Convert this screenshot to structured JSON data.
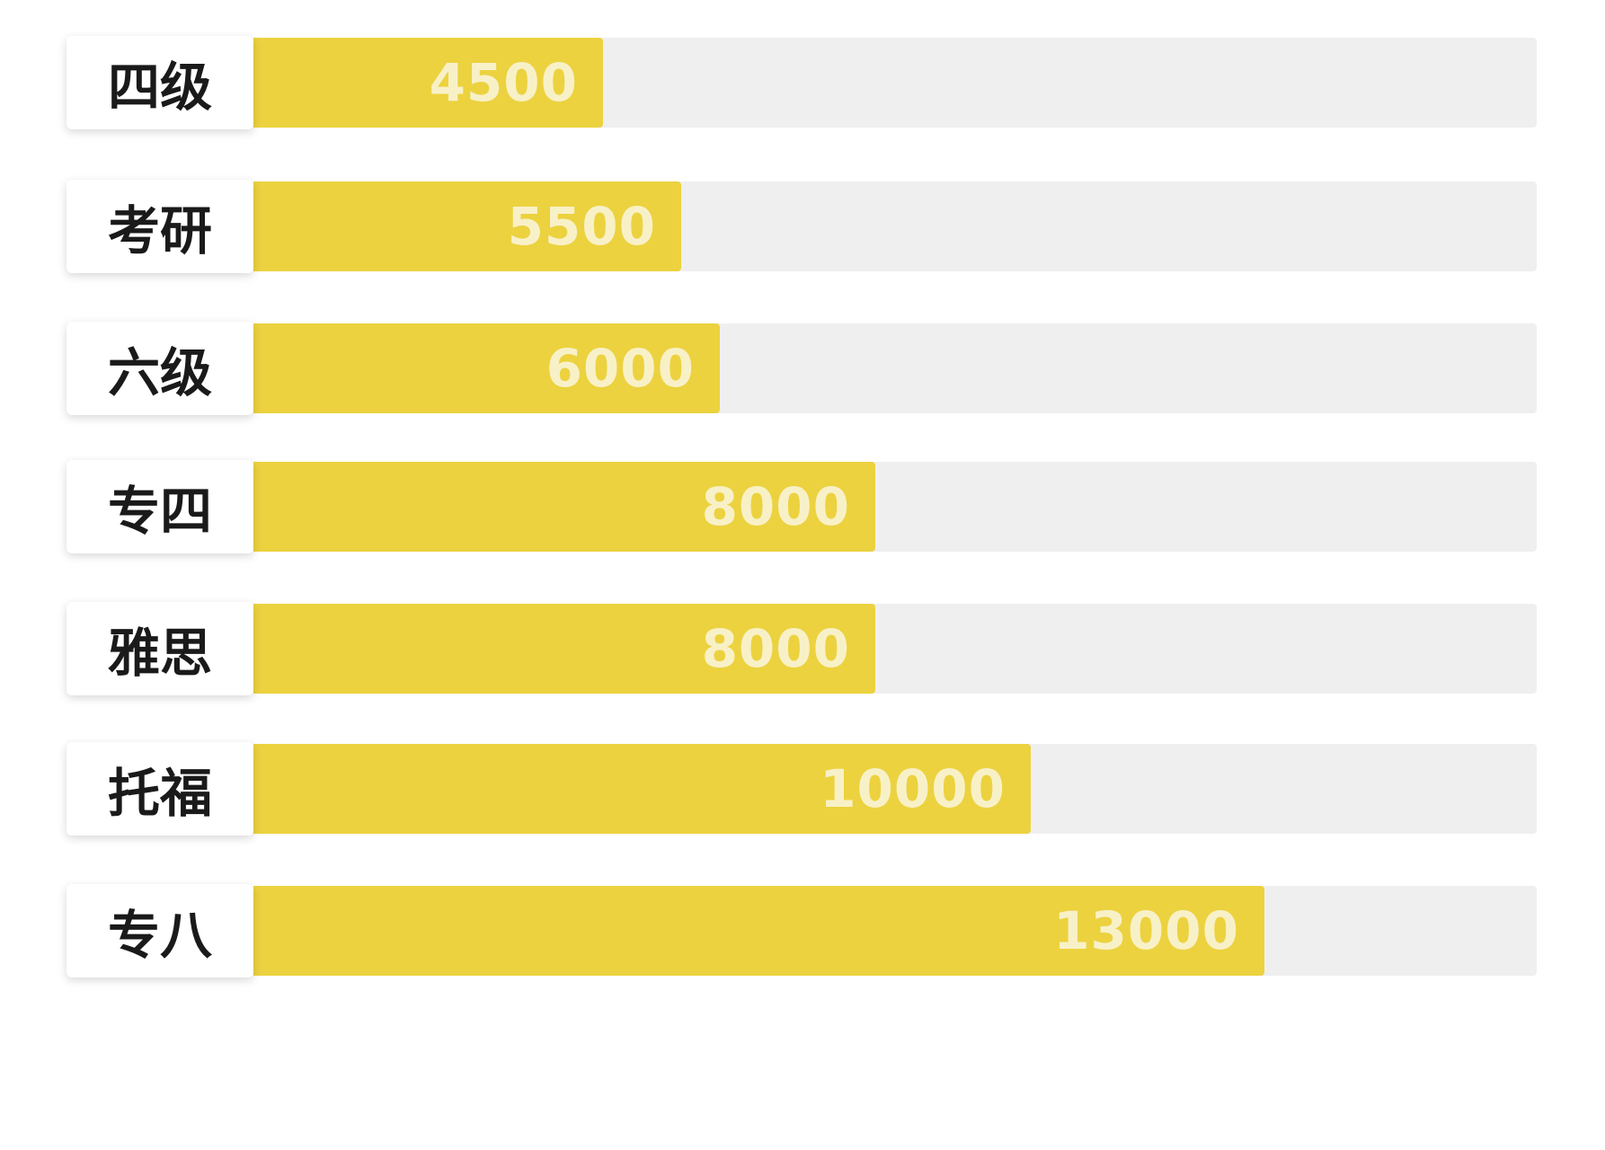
{
  "chart_data": {
    "type": "bar",
    "orientation": "horizontal",
    "categories": [
      "四级",
      "考研",
      "六级",
      "专四",
      "雅思",
      "托福",
      "专八"
    ],
    "values": [
      4500,
      5500,
      6000,
      8000,
      8000,
      10000,
      13000
    ],
    "value_labels": [
      "4500",
      "5500",
      "6000",
      "8000",
      "8000",
      "10000",
      "13000"
    ],
    "title": "",
    "xlabel": "",
    "ylabel": "",
    "xlim": [
      0,
      16500
    ],
    "grid": false,
    "legend": "none"
  },
  "colors": {
    "bar": "#ecd23f",
    "track": "#efefef",
    "label_background": "#ffffff",
    "label_text": "#1a1a1a",
    "value_text": "#f8f1c8"
  }
}
